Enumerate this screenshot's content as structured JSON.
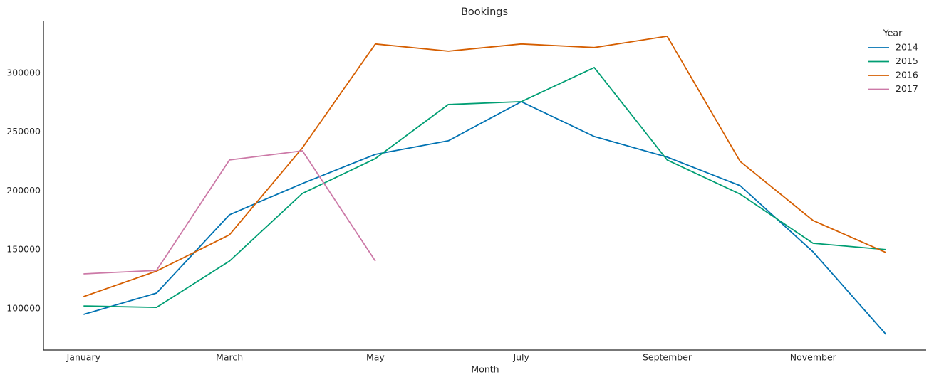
{
  "chart_data": {
    "type": "line",
    "title": "Bookings",
    "x_label": "Month",
    "legend_title": "Year",
    "legend": "upper right",
    "grid": false,
    "categories": [
      "January",
      null,
      "March",
      null,
      "May",
      null,
      "July",
      null,
      "September",
      null,
      "November",
      null
    ],
    "series": [
      {
        "name": "2014",
        "color": "#0072b2",
        "values": [
          95200,
          113300,
          179800,
          206400,
          231100,
          242600,
          275800,
          246200,
          228700,
          204500,
          148300,
          78200
        ]
      },
      {
        "name": "2015",
        "color": "#009e73",
        "values": [
          102400,
          101200,
          140500,
          197900,
          227500,
          273400,
          275800,
          304800,
          226300,
          197300,
          155600,
          150200
        ]
      },
      {
        "name": "2016",
        "color": "#d55e00",
        "values": [
          110300,
          132000,
          162800,
          236600,
          324800,
          318700,
          324800,
          321800,
          331400,
          225100,
          174900,
          147700
        ]
      },
      {
        "name": "2017",
        "color": "#cc79a7",
        "values": [
          129600,
          132600,
          226300,
          234100,
          140500,
          null,
          null,
          null,
          null,
          null,
          null,
          null
        ]
      }
    ],
    "ylim": [
      65000,
      344000
    ],
    "yticks": [
      100000,
      150000,
      200000,
      250000,
      300000
    ]
  }
}
